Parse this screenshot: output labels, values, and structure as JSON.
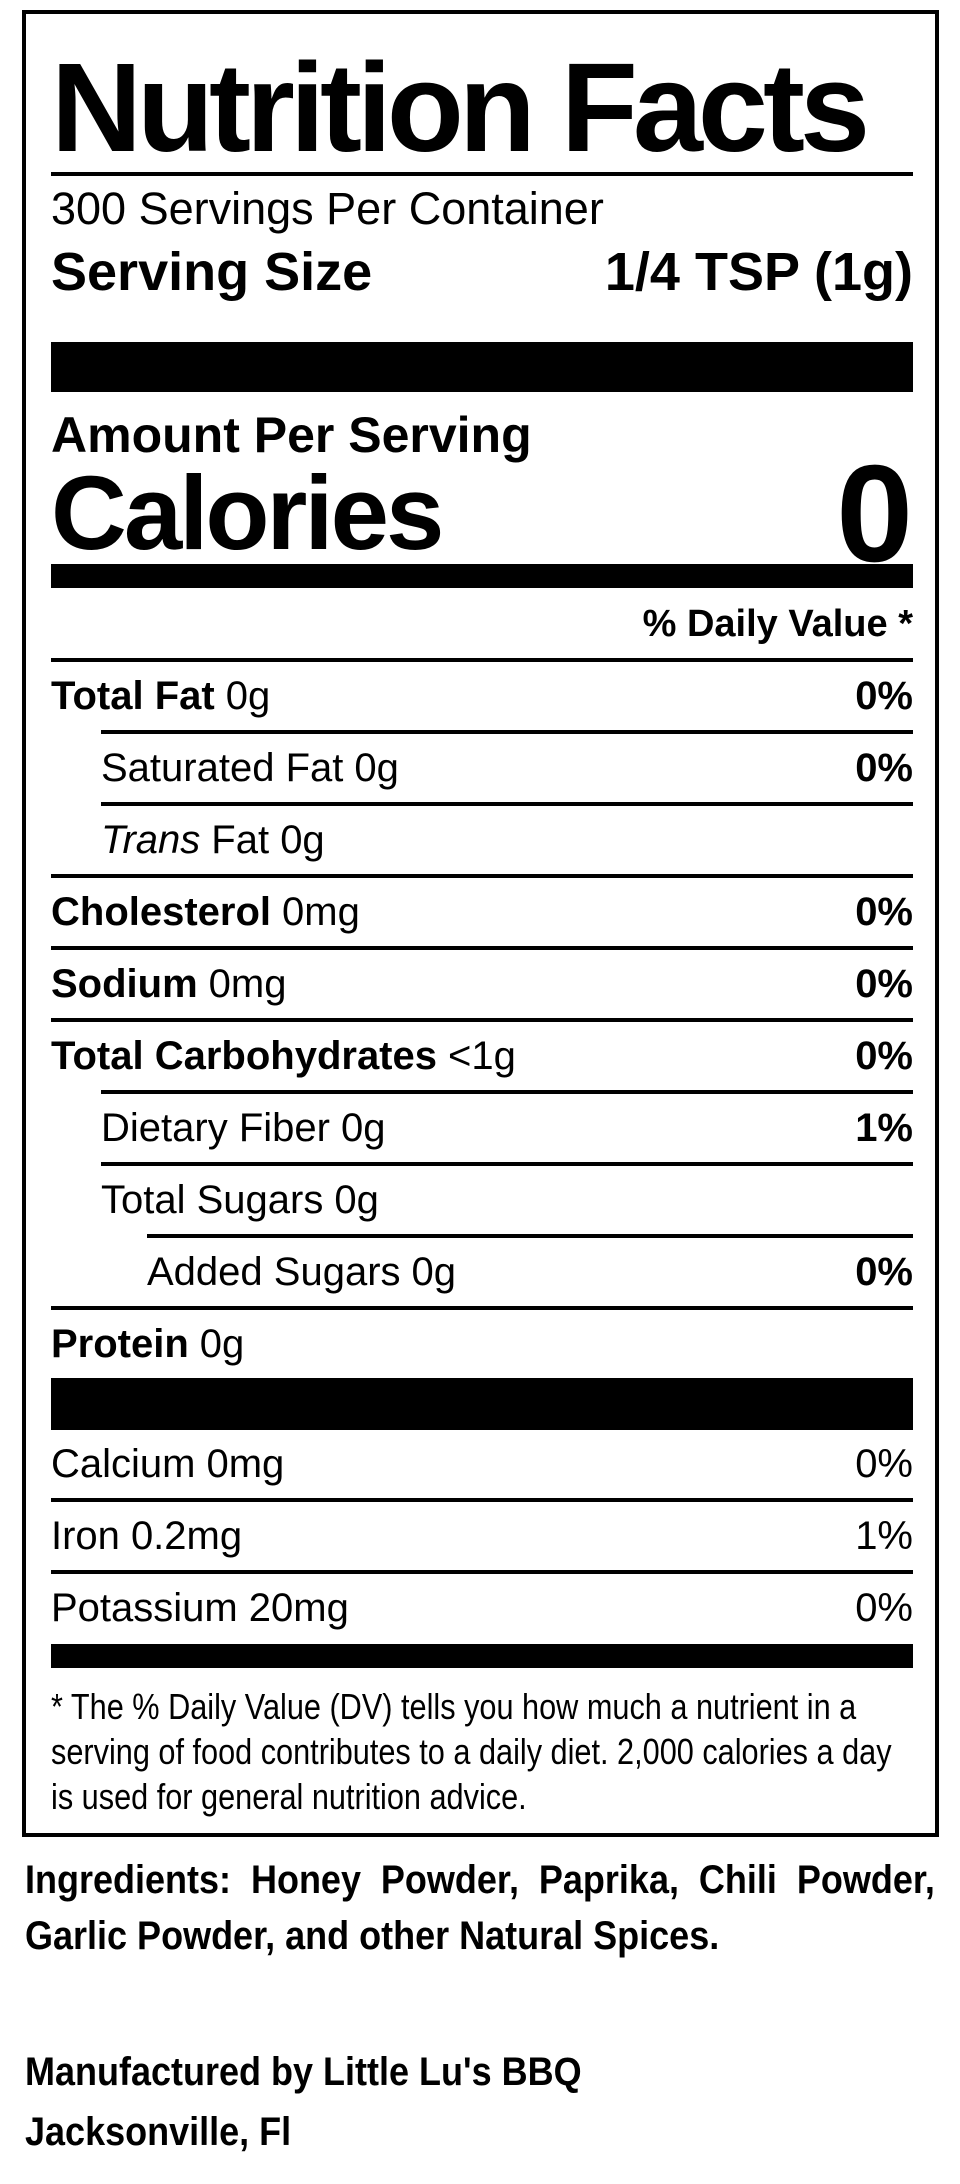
{
  "label": {
    "title": "Nutrition Facts",
    "servings_per_container": "300 Servings Per Container",
    "serving_size_label": "Serving Size",
    "serving_size_value": "1/4 TSP (1g)",
    "amount_per_serving": "Amount Per Serving",
    "calories_label": "Calories",
    "calories_value": "0",
    "daily_value_header": "% Daily Value *",
    "nutrients": [
      {
        "label": "Total Fat",
        "amount": "0g",
        "dv": "0%"
      },
      {
        "label": "Saturated Fat",
        "amount": "0g",
        "dv": "0%"
      },
      {
        "label": "Trans",
        "amount": "Fat 0g",
        "dv": ""
      },
      {
        "label": "Cholesterol",
        "amount": "0mg",
        "dv": "0%"
      },
      {
        "label": "Sodium",
        "amount": "0mg",
        "dv": "0%"
      },
      {
        "label": "Total Carbohydrates",
        "amount": "<1g",
        "dv": "0%"
      },
      {
        "label": "Dietary Fiber",
        "amount": "0g",
        "dv": "1%"
      },
      {
        "label": "Total Sugars",
        "amount": "0g",
        "dv": ""
      },
      {
        "label": "Added Sugars",
        "amount": "0g",
        "dv": "0%"
      },
      {
        "label": "Protein",
        "amount": "0g",
        "dv": ""
      }
    ],
    "minerals": [
      {
        "label": "Calcium",
        "amount": "0mg",
        "dv": "0%"
      },
      {
        "label": "Iron",
        "amount": "0.2mg",
        "dv": "1%"
      },
      {
        "label": "Potassium",
        "amount": "20mg",
        "dv": "0%"
      }
    ],
    "footnote": "* The % Daily Value (DV) tells you how much a nutrient in a serving of food contributes to a daily diet. 2,000 calories a day is used for general nutrition advice."
  },
  "ingredients": "Ingredients: Honey Powder, Paprika, Chili Powder, Garlic Powder, and other Natural Spices.",
  "manufacturer_line1": "Manufactured by Little Lu's BBQ",
  "manufacturer_line2": "Jacksonville, Fl"
}
